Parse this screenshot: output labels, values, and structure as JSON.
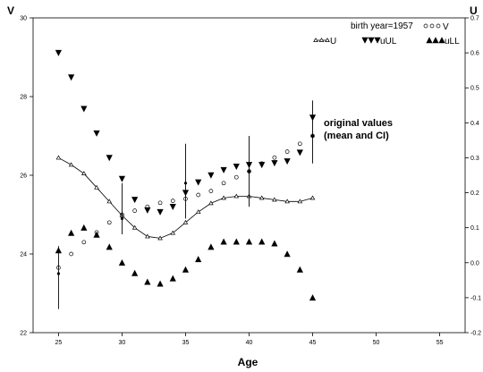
{
  "chart_data": {
    "type": "line",
    "xlabel": "Age",
    "ylabel_left": "V",
    "ylabel_right": "U",
    "xlim": [
      23,
      57
    ],
    "ylim_left": [
      22,
      30
    ],
    "ylim_right": [
      -0.2,
      0.7
    ],
    "x_ticks": [
      25,
      30,
      35,
      40,
      45,
      50,
      55
    ],
    "y_left_ticks": [
      22,
      24,
      26,
      28,
      30
    ],
    "y_right_ticks": [
      -0.2,
      -0.1,
      0.0,
      0.1,
      0.2,
      0.3,
      0.4,
      0.5,
      0.6,
      0.7
    ],
    "y_right_tick_labels": [
      "-0.2",
      "-0.1",
      "0.0",
      "0.1",
      "0.2",
      "0.3",
      "0.4",
      "0.5",
      "0.6",
      "0.7"
    ],
    "legend_header": "birth year=1957",
    "annotation": [
      "original values",
      "(mean and CI)"
    ],
    "grid": false,
    "series": [
      {
        "name": "V",
        "axis": "left",
        "marker": "open-circle",
        "x": [
          25,
          26,
          27,
          28,
          29,
          30,
          31,
          32,
          33,
          34,
          35,
          36,
          37,
          38,
          39,
          40,
          41,
          42,
          43,
          44,
          45
        ],
        "y": [
          23.65,
          24.0,
          24.3,
          24.55,
          24.8,
          25.0,
          25.1,
          25.2,
          25.3,
          25.35,
          25.4,
          25.5,
          25.6,
          25.8,
          25.95,
          26.1,
          26.3,
          26.45,
          26.6,
          26.8,
          27.0
        ]
      },
      {
        "name": "U",
        "axis": "right",
        "marker": "open-triangle",
        "line": true,
        "x": [
          25,
          26,
          27,
          28,
          29,
          30,
          31,
          32,
          33,
          34,
          35,
          36,
          37,
          38,
          39,
          40,
          41,
          42,
          43,
          44,
          45
        ],
        "y": [
          0.3,
          0.28,
          0.255,
          0.215,
          0.175,
          0.135,
          0.1,
          0.075,
          0.07,
          0.085,
          0.115,
          0.145,
          0.17,
          0.185,
          0.19,
          0.19,
          0.185,
          0.18,
          0.175,
          0.175,
          0.185
        ]
      },
      {
        "name": "uUL",
        "axis": "right",
        "marker": "filled-down-triangle",
        "x": [
          25,
          26,
          27,
          28,
          29,
          30,
          31,
          32,
          33,
          34,
          35,
          36,
          37,
          38,
          39,
          40,
          41,
          42,
          43,
          44,
          45
        ],
        "y": [
          0.6,
          0.53,
          0.44,
          0.37,
          0.3,
          0.24,
          0.18,
          0.15,
          0.145,
          0.16,
          0.2,
          0.23,
          0.25,
          0.265,
          0.275,
          0.28,
          0.28,
          0.285,
          0.29,
          0.315,
          0.415
        ]
      },
      {
        "name": "uLL",
        "axis": "right",
        "marker": "filled-up-triangle",
        "x": [
          25,
          26,
          27,
          28,
          29,
          30,
          31,
          32,
          33,
          34,
          35,
          36,
          37,
          38,
          39,
          40,
          41,
          42,
          43,
          44,
          45
        ],
        "y": [
          0.035,
          0.085,
          0.1,
          0.08,
          0.045,
          0.0,
          -0.03,
          -0.055,
          -0.06,
          -0.045,
          -0.02,
          0.01,
          0.045,
          0.06,
          0.06,
          0.06,
          0.06,
          0.055,
          0.025,
          -0.02,
          -0.1
        ]
      }
    ],
    "original_values": {
      "axis": "left",
      "x": [
        25,
        30,
        35,
        40,
        45
      ],
      "mean": [
        23.5,
        24.9,
        25.8,
        26.1,
        27.0
      ],
      "ci_low": [
        22.6,
        24.5,
        24.9,
        25.2,
        26.3
      ],
      "ci_high": [
        24.2,
        25.8,
        26.8,
        27.0,
        27.9
      ]
    }
  }
}
